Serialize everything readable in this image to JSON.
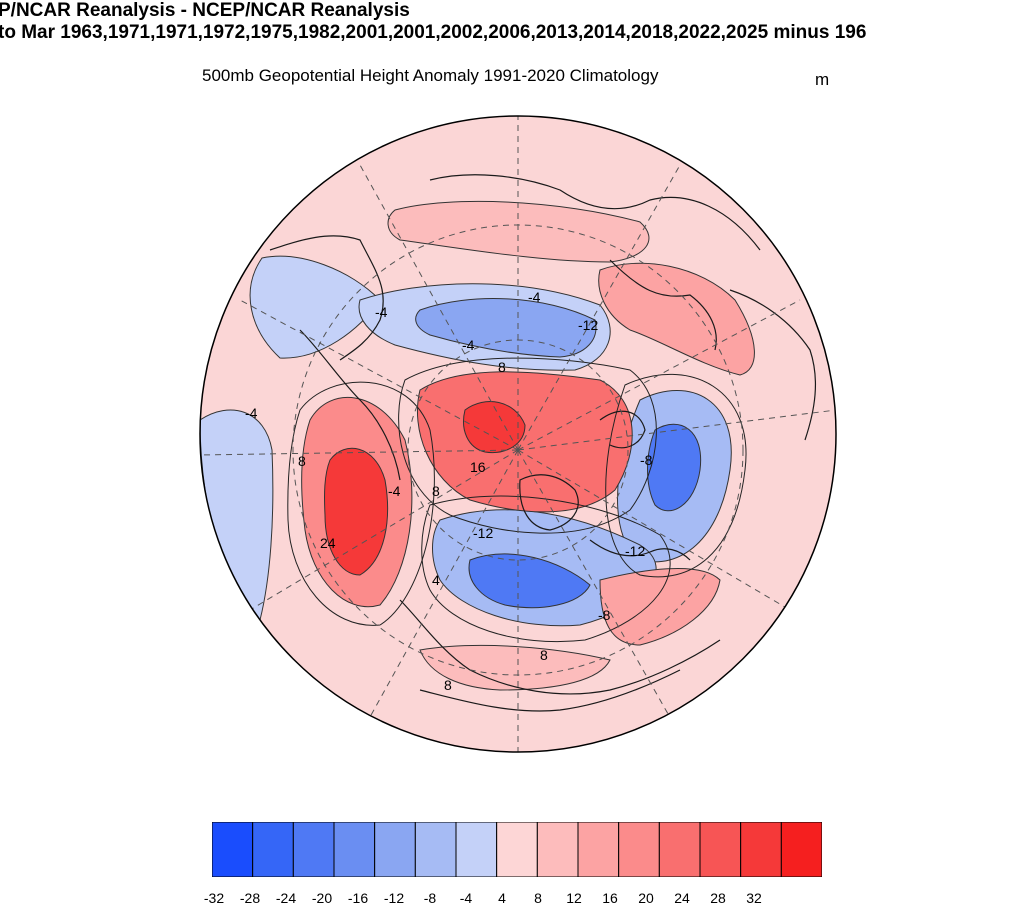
{
  "header": {
    "title_line1": "P/NCAR Reanalysis - NCEP/NCAR Reanalysis",
    "title_line2": "to Mar 1963,1971,1971,1972,1975,1982,2001,2001,2002,2006,2013,2014,2018,2022,2025 minus 196",
    "subtitle": "500mb Geopotential Height Anomaly  1991-2020 Climatology",
    "units": "m"
  },
  "colorbar": {
    "colors": [
      "#1a4dfd",
      "#3566f7",
      "#4f79f4",
      "#6a8ef2",
      "#8aa6f2",
      "#a6bbf4",
      "#c4d1f8",
      "#fdd6d6",
      "#fdbcbc",
      "#fca3a3",
      "#fb8b8b",
      "#f96f6f",
      "#f75555",
      "#f53939",
      "#f51f1f"
    ],
    "labels": [
      "-32",
      "-28",
      "-24",
      "-20",
      "-16",
      "-12",
      "-8",
      "-4",
      "4",
      "8",
      "12",
      "16",
      "20",
      "24",
      "28",
      "32"
    ]
  },
  "contour_labels": [
    "-4",
    "-12",
    "-4",
    "-4",
    "-4",
    "8",
    "16",
    "8",
    "-8",
    "-12",
    "-12",
    "-8",
    "24",
    "8",
    "4",
    "-4",
    "8",
    "8"
  ],
  "palette": {
    "background_anomaly": "#fbd6d6",
    "coast": "#1a1a1a"
  }
}
